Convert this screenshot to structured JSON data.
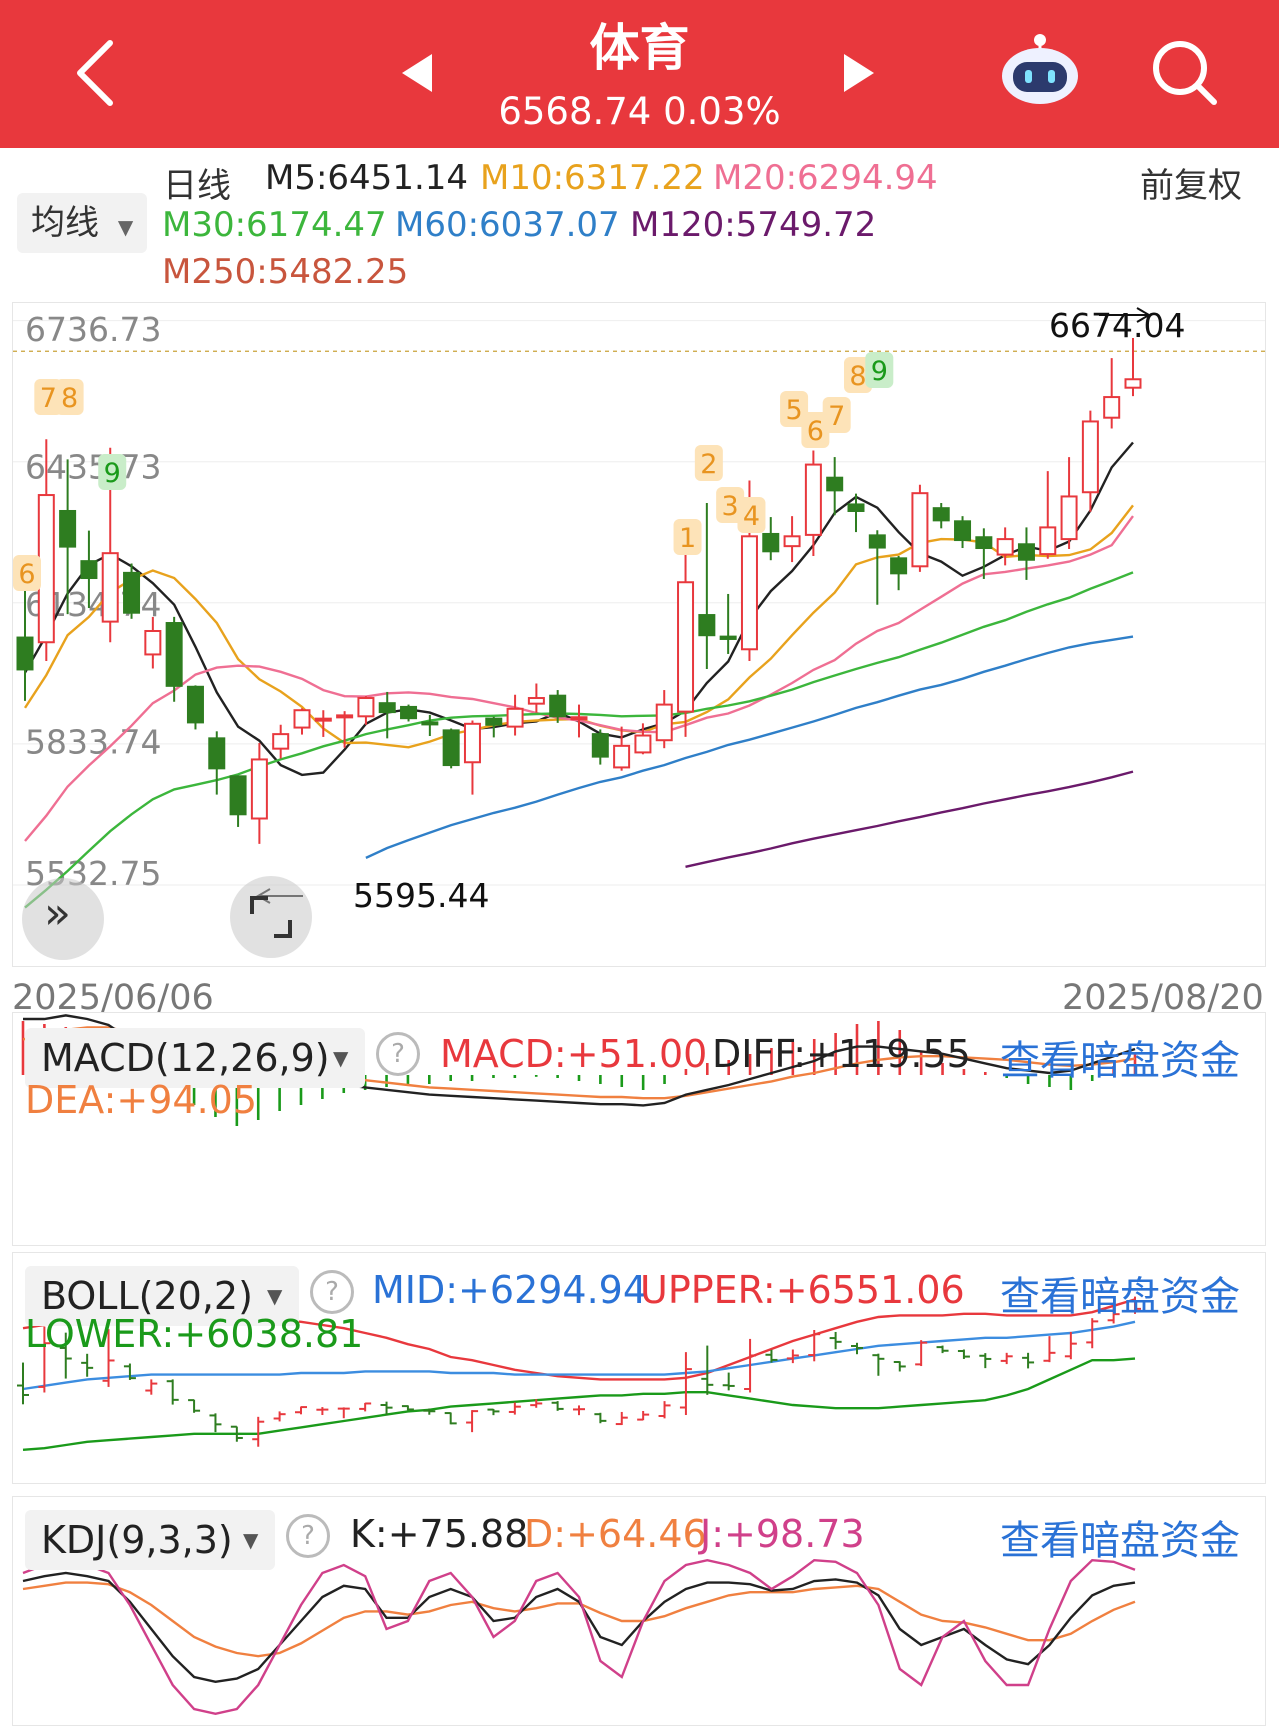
{
  "header": {
    "title": "体育",
    "subtitle": "6568.74 0.03%"
  },
  "ma_bar": {
    "period_label": "日线",
    "dropdown_label": "均线",
    "adjust_label": "前复权",
    "ma": [
      {
        "label": "M5:6451.14",
        "color": "#222222"
      },
      {
        "label": "M10:6317.22",
        "color": "#e8a21d"
      },
      {
        "label": "M20:6294.94",
        "color": "#ef6f93"
      },
      {
        "label": "M30:6174.47",
        "color": "#3cb63c"
      },
      {
        "label": "M60:6037.07",
        "color": "#2f7fc8"
      },
      {
        "label": "M120:5749.72",
        "color": "#6b1a6b"
      },
      {
        "label": "M250:5482.25",
        "color": "#c8553d"
      }
    ]
  },
  "main_chart": {
    "y_labels": [
      "6736.73",
      "6435.73",
      "6134.74",
      "5833.74",
      "5532.75"
    ],
    "high_marker": "6674.04",
    "low_marker": "5595.44",
    "start_date": "2025/06/06",
    "end_date": "2025/08/20",
    "td_labels": [
      "7",
      "8",
      "9",
      "6",
      "1",
      "2",
      "3",
      "4",
      "5",
      "6",
      "7",
      "8",
      "9"
    ]
  },
  "macd": {
    "dropdown_label": "MACD(12,26,9)",
    "help_icon_text": "?",
    "macd": "MACD:+51.00",
    "diff": "DIFF:+119.55",
    "dea": "DEA:+94.05",
    "link": "查看暗盘资金"
  },
  "boll": {
    "dropdown_label": "BOLL(20,2)",
    "help_icon_text": "?",
    "mid": "MID:+6294.94",
    "upper": "UPPER:+6551.06",
    "lower": "LOWER:+6038.81",
    "link": "查看暗盘资金"
  },
  "kdj": {
    "dropdown_label": "KDJ(9,3,3)",
    "help_icon_text": "?",
    "k": "K:+75.88",
    "d": "D:+64.46",
    "j": "J:+98.73",
    "link": "查看暗盘资金"
  },
  "chart_data": {
    "type": "candlestick",
    "x_range": [
      "2025/06/06",
      "2025/08/20"
    ],
    "y_ticks": [
      6736.73,
      6435.73,
      6134.74,
      5833.74,
      5532.75
    ],
    "ylim": [
      5532.75,
      6736.73
    ],
    "high": 6674.04,
    "low": 5595.44,
    "candles": [
      {
        "o": 6035,
        "c": 5967,
        "h": 6200,
        "l": 5900
      },
      {
        "o": 6025,
        "c": 6339,
        "h": 6458,
        "l": 5985
      },
      {
        "o": 6305,
        "c": 6229,
        "h": 6415,
        "l": 6085
      },
      {
        "o": 6198,
        "c": 6162,
        "h": 6263,
        "l": 6098
      },
      {
        "o": 6069,
        "c": 6215,
        "h": 6440,
        "l": 6025
      },
      {
        "o": 6173,
        "c": 6088,
        "h": 6193,
        "l": 6075
      },
      {
        "o": 5999,
        "c": 6049,
        "h": 6079,
        "l": 5969
      },
      {
        "o": 6066,
        "c": 5932,
        "h": 6079,
        "l": 5898
      },
      {
        "o": 5930,
        "c": 5854,
        "h": 5933,
        "l": 5839
      },
      {
        "o": 5820,
        "c": 5756,
        "h": 5835,
        "l": 5700
      },
      {
        "o": 5739,
        "c": 5658,
        "h": 5740,
        "l": 5631
      },
      {
        "o": 5649,
        "c": 5775,
        "h": 5810,
        "l": 5595
      },
      {
        "o": 5798,
        "c": 5829,
        "h": 5849,
        "l": 5777
      },
      {
        "o": 5843,
        "c": 5880,
        "h": 5884,
        "l": 5828
      },
      {
        "o": 5861,
        "c": 5862,
        "h": 5880,
        "l": 5823
      },
      {
        "o": 5869,
        "c": 5869,
        "h": 5878,
        "l": 5800
      },
      {
        "o": 5867,
        "c": 5906,
        "h": 5910,
        "l": 5849
      },
      {
        "o": 5895,
        "c": 5876,
        "h": 5919,
        "l": 5820
      },
      {
        "o": 5887,
        "c": 5863,
        "h": 5892,
        "l": 5856
      },
      {
        "o": 5854,
        "c": 5850,
        "h": 5870,
        "l": 5825
      },
      {
        "o": 5837,
        "c": 5763,
        "h": 5841,
        "l": 5756
      },
      {
        "o": 5769,
        "c": 5851,
        "h": 5858,
        "l": 5700
      },
      {
        "o": 5862,
        "c": 5849,
        "h": 5866,
        "l": 5822
      },
      {
        "o": 5845,
        "c": 5883,
        "h": 5913,
        "l": 5826
      },
      {
        "o": 5894,
        "c": 5906,
        "h": 5937,
        "l": 5875
      },
      {
        "o": 5911,
        "c": 5867,
        "h": 5923,
        "l": 5853
      },
      {
        "o": 5863,
        "c": 5865,
        "h": 5892,
        "l": 5822
      },
      {
        "o": 5829,
        "c": 5781,
        "h": 5839,
        "l": 5764
      },
      {
        "o": 5758,
        "c": 5804,
        "h": 5845,
        "l": 5751
      },
      {
        "o": 5790,
        "c": 5826,
        "h": 5852,
        "l": 5786
      },
      {
        "o": 5816,
        "c": 5892,
        "h": 5923,
        "l": 5799
      },
      {
        "o": 5877,
        "c": 6153,
        "h": 6275,
        "l": 5823
      },
      {
        "o": 6083,
        "c": 6040,
        "h": 6322,
        "l": 5968
      },
      {
        "o": 6037,
        "c": 6032,
        "h": 6128,
        "l": 6000
      },
      {
        "o": 6010,
        "c": 6251,
        "h": 6370,
        "l": 5985
      },
      {
        "o": 6256,
        "c": 6219,
        "h": 6292,
        "l": 6200
      },
      {
        "o": 6230,
        "c": 6251,
        "h": 6294,
        "l": 6196
      },
      {
        "o": 6254,
        "c": 6404,
        "h": 6434,
        "l": 6209
      },
      {
        "o": 6376,
        "c": 6349,
        "h": 6420,
        "l": 6296
      },
      {
        "o": 6319,
        "c": 6305,
        "h": 6342,
        "l": 6260
      },
      {
        "o": 6253,
        "c": 6227,
        "h": 6264,
        "l": 6105
      },
      {
        "o": 6204,
        "c": 6172,
        "h": 6209,
        "l": 6136
      },
      {
        "o": 6187,
        "c": 6343,
        "h": 6361,
        "l": 6175
      },
      {
        "o": 6311,
        "c": 6285,
        "h": 6322,
        "l": 6268
      },
      {
        "o": 6283,
        "c": 6243,
        "h": 6294,
        "l": 6226
      },
      {
        "o": 6249,
        "c": 6226,
        "h": 6268,
        "l": 6160
      },
      {
        "o": 6212,
        "c": 6245,
        "h": 6270,
        "l": 6189
      },
      {
        "o": 6234,
        "c": 6201,
        "h": 6270,
        "l": 6158
      },
      {
        "o": 6213,
        "c": 6270,
        "h": 6390,
        "l": 6203
      },
      {
        "o": 6245,
        "c": 6336,
        "h": 6420,
        "l": 6224
      },
      {
        "o": 6345,
        "c": 6496,
        "h": 6519,
        "l": 6303
      },
      {
        "o": 6504,
        "c": 6548,
        "h": 6631,
        "l": 6481
      },
      {
        "o": 6568,
        "c": 6586,
        "h": 6674,
        "l": 6550
      }
    ],
    "ma_series": [
      {
        "name": "M5",
        "color": "#222222",
        "values": [
          5960,
          6040,
          6129,
          6190,
          6213,
          6187,
          6151,
          6105,
          6015,
          5918,
          5845,
          5815,
          5763,
          5742,
          5747,
          5796,
          5851,
          5875,
          5882,
          5875,
          5858,
          5840,
          5844,
          5852,
          5856,
          5875,
          5856,
          5830,
          5822,
          5839,
          5852,
          5879,
          5938,
          5984,
          6074,
          6134,
          6177,
          6232,
          6301,
          6335,
          6312,
          6260,
          6215,
          6197,
          6167,
          6186,
          6211,
          6229,
          6220,
          6240,
          6306,
          6398,
          6451
        ]
      },
      {
        "name": "M10",
        "color": "#e8a21d",
        "values": [
          5885,
          5955,
          6040,
          6079,
          6131,
          6159,
          6178,
          6162,
          6117,
          6066,
          5989,
          5946,
          5920,
          5887,
          5841,
          5810,
          5811,
          5806,
          5801,
          5813,
          5829,
          5838,
          5848,
          5855,
          5858,
          5860,
          5861,
          5847,
          5837,
          5833,
          5850,
          5855,
          5876,
          5903,
          5950,
          5990,
          6040,
          6088,
          6131,
          6191,
          6206,
          6212,
          6237,
          6245,
          6244,
          6238,
          6207,
          6211,
          6209,
          6211,
          6223,
          6258,
          6317
        ]
      },
      {
        "name": "M20",
        "color": "#ef6f93",
        "values": [
          5601,
          5655,
          5717,
          5762,
          5803,
          5847,
          5895,
          5922,
          5956,
          5971,
          5975,
          5973,
          5962,
          5947,
          5923,
          5910,
          5909,
          5916,
          5918,
          5915,
          5908,
          5904,
          5895,
          5886,
          5874,
          5864,
          5858,
          5848,
          5838,
          5834,
          5833,
          5848,
          5864,
          5873,
          5890,
          5913,
          5938,
          5966,
          5987,
          6022,
          6049,
          6066,
          6094,
          6122,
          6150,
          6170,
          6175,
          6182,
          6189,
          6197,
          6212,
          6232,
          6294
        ]
      },
      {
        "name": "M30",
        "color": "#3cb63c",
        "values": [
          5459,
          5497,
          5537,
          5580,
          5622,
          5658,
          5690,
          5711,
          5721,
          5731,
          5743,
          5760,
          5775,
          5788,
          5803,
          5815,
          5829,
          5839,
          5848,
          5858,
          5864,
          5867,
          5868,
          5870,
          5872,
          5873,
          5872,
          5870,
          5867,
          5868,
          5869,
          5874,
          5883,
          5890,
          5899,
          5911,
          5924,
          5940,
          5954,
          5968,
          5981,
          5993,
          6009,
          6024,
          6041,
          6058,
          6072,
          6090,
          6106,
          6120,
          6139,
          6156,
          6174
        ]
      },
      {
        "name": "M60",
        "color": "#2f7fc8",
        "values": [
          null,
          null,
          null,
          null,
          null,
          null,
          null,
          null,
          null,
          null,
          null,
          null,
          null,
          null,
          null,
          null,
          5565,
          5586,
          5603,
          5619,
          5635,
          5648,
          5661,
          5672,
          5685,
          5700,
          5714,
          5727,
          5737,
          5751,
          5763,
          5778,
          5791,
          5806,
          5817,
          5830,
          5843,
          5856,
          5870,
          5885,
          5897,
          5911,
          5924,
          5934,
          5947,
          5962,
          5975,
          5989,
          6002,
          6014,
          6023,
          6030,
          6037
        ]
      },
      {
        "name": "M120",
        "color": "#6b1a6b",
        "values": [
          null,
          null,
          null,
          null,
          null,
          null,
          null,
          null,
          null,
          null,
          null,
          null,
          null,
          null,
          null,
          null,
          null,
          null,
          null,
          null,
          null,
          null,
          null,
          null,
          null,
          null,
          null,
          null,
          null,
          null,
          null,
          5546,
          5556,
          5566,
          5575,
          5585,
          5596,
          5606,
          5615,
          5624,
          5633,
          5643,
          5652,
          5662,
          5671,
          5681,
          5690,
          5699,
          5707,
          5716,
          5726,
          5737,
          5749
        ]
      }
    ]
  }
}
